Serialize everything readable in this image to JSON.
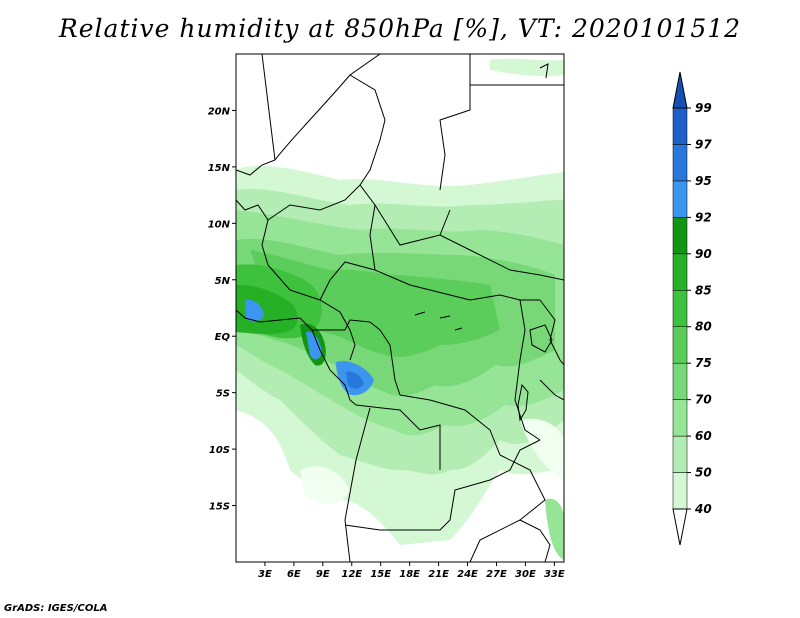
{
  "title": "Relative humidity at 850hPa [%], VT: 2020101512",
  "credit": "GrADS: IGES/COLA",
  "map": {
    "lon_range": [
      0,
      34
    ],
    "lat_range": [
      -20,
      25
    ],
    "lon_ticks": [
      {
        "value": 3,
        "label": "3E"
      },
      {
        "value": 6,
        "label": "6E"
      },
      {
        "value": 9,
        "label": "9E"
      },
      {
        "value": 12,
        "label": "12E"
      },
      {
        "value": 15,
        "label": "15E"
      },
      {
        "value": 18,
        "label": "18E"
      },
      {
        "value": 21,
        "label": "21E"
      },
      {
        "value": 24,
        "label": "24E"
      },
      {
        "value": 27,
        "label": "27E"
      },
      {
        "value": 30,
        "label": "30E"
      },
      {
        "value": 33,
        "label": "33E"
      }
    ],
    "lat_ticks": [
      {
        "value": 20,
        "label": "20N"
      },
      {
        "value": 15,
        "label": "15N"
      },
      {
        "value": 10,
        "label": "10N"
      },
      {
        "value": 5,
        "label": "5N"
      },
      {
        "value": 0,
        "label": "EQ"
      },
      {
        "value": -5,
        "label": "5S"
      },
      {
        "value": -10,
        "label": "10S"
      },
      {
        "value": -15,
        "label": "15S"
      }
    ]
  },
  "colorbar": {
    "levels": [
      "40",
      "50",
      "60",
      "70",
      "75",
      "80",
      "85",
      "90",
      "92",
      "95",
      "97",
      "99"
    ],
    "colors": [
      "#f0fff0",
      "#d4f7d4",
      "#b4edb4",
      "#96e496",
      "#78d878",
      "#5acd5a",
      "#3ec23e",
      "#25b025",
      "#129612",
      "#3c96f0",
      "#2878dc",
      "#1e5fc8",
      "#1450b4"
    ],
    "low_arrow_color": "#ffffff",
    "high_arrow_color": "#1450b4"
  }
}
